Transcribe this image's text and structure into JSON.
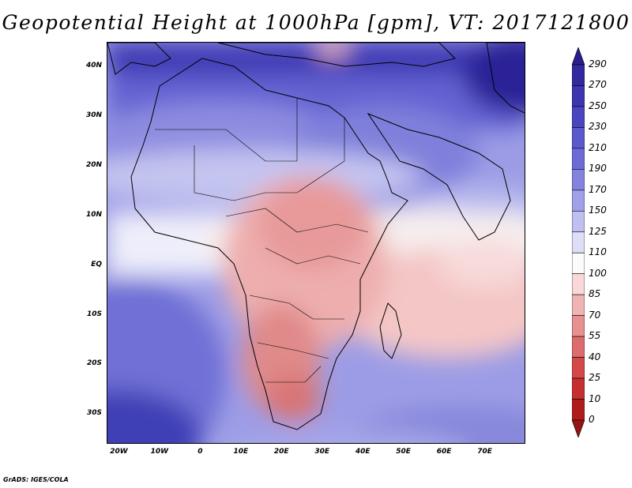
{
  "title": "Geopotential Height at 1000hPa [gpm], VT: 2017121800",
  "credit": "GrADS: IGES/COLA",
  "map": {
    "lon_range": [
      -23,
      80
    ],
    "lat_range": [
      -36,
      45
    ],
    "x_ticks": [
      "20W",
      "10W",
      "0",
      "10E",
      "20E",
      "30E",
      "40E",
      "50E",
      "60E",
      "70E"
    ],
    "x_tick_values": [
      -20,
      -10,
      0,
      10,
      20,
      30,
      40,
      50,
      60,
      70
    ],
    "y_ticks": [
      "40N",
      "30N",
      "20N",
      "10N",
      "EQ",
      "10S",
      "20S",
      "30S"
    ],
    "y_tick_values": [
      40,
      30,
      20,
      10,
      0,
      -10,
      -20,
      -30
    ]
  },
  "colorbar": {
    "labels": [
      "290",
      "270",
      "250",
      "230",
      "210",
      "190",
      "170",
      "150",
      "125",
      "110",
      "100",
      "85",
      "70",
      "55",
      "40",
      "25",
      "10",
      "0"
    ],
    "colors": [
      "#281e8c",
      "#32289f",
      "#3c36b0",
      "#4a46c0",
      "#5a5acc",
      "#6c6cd6",
      "#8484df",
      "#a0a0e8",
      "#c0c0f0",
      "#dedef7",
      "#fbfbfb",
      "#f9d8d8",
      "#f1b4b4",
      "#e79090",
      "#dd6c6c",
      "#d54848",
      "#c52f2f",
      "#b01c1c",
      "#951414"
    ]
  }
}
